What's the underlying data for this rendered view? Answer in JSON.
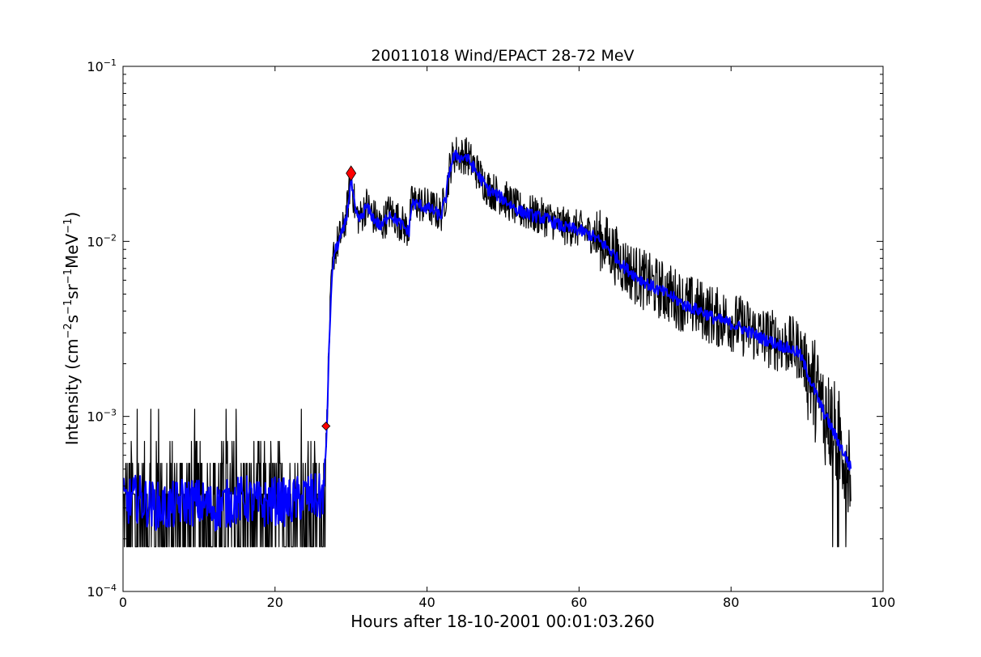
{
  "chart_data": {
    "type": "line",
    "title": "20011018 Wind/EPACT 28-72 MeV",
    "xlabel": "Hours after 18-10-2001 00:01:03.260",
    "ylabel_parts": [
      "Intensity (cm",
      "−2",
      "s",
      "−1",
      "sr",
      "−1",
      "MeV",
      "−1",
      ")"
    ],
    "xlim": [
      0,
      100
    ],
    "ylim": [
      0.0001,
      0.1
    ],
    "yscale": "log",
    "x_ticks": [
      0,
      20,
      40,
      60,
      80,
      100
    ],
    "x_tick_labels": [
      "0",
      "20",
      "40",
      "60",
      "80",
      "100"
    ],
    "y_ticks": [
      0.0001,
      0.001,
      0.01,
      0.1
    ],
    "y_tick_labels": [
      {
        "base": "10",
        "exp": "−4"
      },
      {
        "base": "10",
        "exp": "−3"
      },
      {
        "base": "10",
        "exp": "−2"
      },
      {
        "base": "10",
        "exp": "−1"
      }
    ],
    "grid": false,
    "legend": "none",
    "series": [
      {
        "color": "#000000",
        "style": "raw intensity",
        "x": [
          0,
          2,
          4,
          6,
          8,
          10,
          12,
          14,
          16,
          18,
          20,
          22,
          24,
          26,
          26.5,
          26.8,
          27.0,
          27.3,
          27.7,
          28.2,
          29.0,
          29.5,
          30.0,
          30.6,
          31.2,
          32.0,
          33.0,
          34.0,
          35.0,
          36.0,
          37.0,
          37.6,
          38.0,
          39.0,
          40.0,
          41.0,
          41.8,
          42.5,
          43.0,
          43.5,
          44.0,
          44.5,
          45.0,
          45.8,
          47.0,
          48.0,
          50.0,
          52.0,
          54.0,
          56.0,
          58.0,
          60.0,
          62.0,
          64.0,
          66.0,
          68.0,
          70.0,
          72.0,
          74.0,
          76.0,
          78.0,
          80.0,
          82.0,
          84.0,
          86.0,
          88.0,
          89.0,
          90.0,
          91.0,
          92.0,
          93.0,
          94.0,
          95.0,
          95.8
        ],
        "y": [
          0.00033,
          0.00035,
          0.00033,
          0.00032,
          0.00034,
          0.00033,
          0.00031,
          0.00033,
          0.00035,
          0.00032,
          0.00034,
          0.00033,
          0.00036,
          0.00035,
          0.0004,
          0.00085,
          0.0018,
          0.0045,
          0.0085,
          0.0097,
          0.0118,
          0.0152,
          0.0235,
          0.0145,
          0.0135,
          0.0162,
          0.0138,
          0.0122,
          0.0148,
          0.0135,
          0.0122,
          0.0115,
          0.0168,
          0.0165,
          0.0158,
          0.0152,
          0.0142,
          0.0185,
          0.0265,
          0.031,
          0.032,
          0.0305,
          0.0315,
          0.0285,
          0.0235,
          0.0202,
          0.0178,
          0.0152,
          0.0142,
          0.0135,
          0.0122,
          0.0118,
          0.0108,
          0.0092,
          0.0072,
          0.0062,
          0.0055,
          0.005,
          0.0044,
          0.0041,
          0.0037,
          0.0035,
          0.0032,
          0.0029,
          0.0027,
          0.0025,
          0.0024,
          0.0019,
          0.00145,
          0.00112,
          0.00092,
          0.00075,
          0.00062,
          0.00052
        ]
      },
      {
        "color": "#0000ff",
        "style": "smoothed intensity",
        "x": [
          0,
          2,
          4,
          6,
          8,
          10,
          12,
          14,
          16,
          18,
          20,
          22,
          24,
          26,
          26.5,
          26.8,
          27.0,
          27.3,
          27.7,
          28.2,
          29.0,
          29.5,
          30.0,
          30.6,
          31.2,
          32.0,
          33.0,
          34.0,
          35.0,
          36.0,
          37.0,
          37.6,
          38.0,
          39.0,
          40.0,
          41.0,
          41.8,
          42.5,
          43.0,
          43.5,
          44.0,
          44.5,
          45.0,
          45.8,
          47.0,
          48.0,
          50.0,
          52.0,
          54.0,
          56.0,
          58.0,
          60.0,
          62.0,
          64.0,
          66.0,
          68.0,
          70.0,
          72.0,
          74.0,
          76.0,
          78.0,
          80.0,
          82.0,
          84.0,
          86.0,
          88.0,
          89.0,
          90.0,
          91.0,
          92.0,
          93.0,
          94.0,
          95.0,
          95.8
        ],
        "y": [
          0.00032,
          0.00034,
          0.00031,
          0.0003,
          0.00033,
          0.00032,
          0.0003,
          0.00032,
          0.00034,
          0.00031,
          0.00033,
          0.00032,
          0.00035,
          0.00034,
          0.00039,
          0.00082,
          0.0017,
          0.0043,
          0.0082,
          0.0095,
          0.0115,
          0.0148,
          0.0225,
          0.0142,
          0.0132,
          0.0158,
          0.0135,
          0.012,
          0.0145,
          0.0132,
          0.012,
          0.0113,
          0.0165,
          0.0162,
          0.0155,
          0.0148,
          0.0139,
          0.018,
          0.026,
          0.0302,
          0.0312,
          0.0298,
          0.0308,
          0.0278,
          0.023,
          0.0198,
          0.0175,
          0.015,
          0.014,
          0.0133,
          0.012,
          0.0116,
          0.0106,
          0.009,
          0.0071,
          0.0061,
          0.0054,
          0.0049,
          0.0043,
          0.004,
          0.0036,
          0.0034,
          0.0031,
          0.0028,
          0.0026,
          0.0024,
          0.0023,
          0.0018,
          0.0014,
          0.0011,
          0.0009,
          0.00073,
          0.0006,
          0.0005
        ]
      }
    ],
    "markers": [
      {
        "x": 26.7,
        "y": 0.00088,
        "shape": "diamond",
        "color": "#ff0000",
        "size": "small"
      },
      {
        "x": 30.0,
        "y": 0.0245,
        "shape": "diamond",
        "color": "#ff0000",
        "size": "large"
      }
    ]
  }
}
